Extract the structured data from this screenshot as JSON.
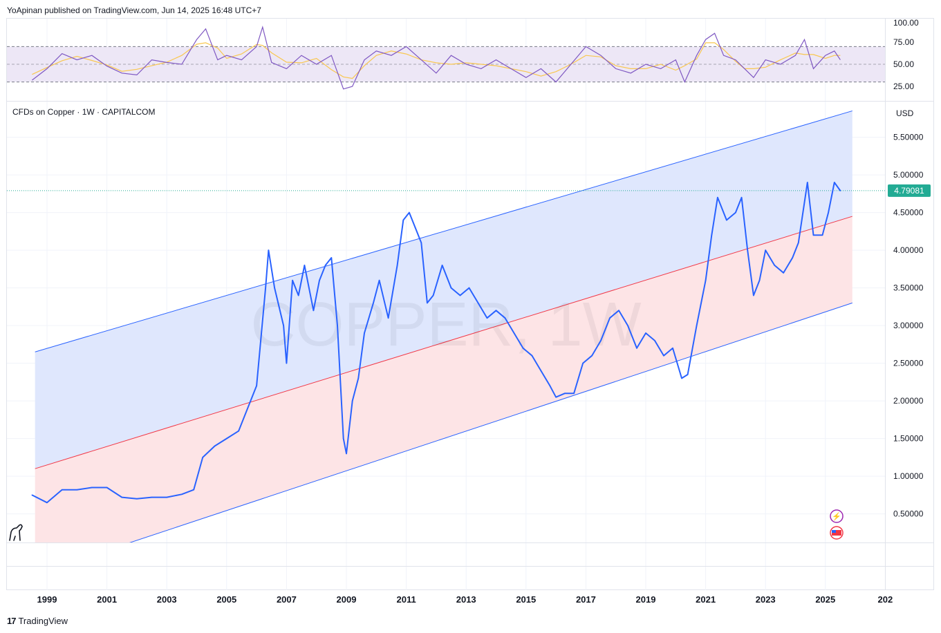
{
  "header": {
    "published": "YoApinan published on TradingView.com, Jun 14, 2025 16:48 UTC+7"
  },
  "symbol": {
    "label": "CFDs on Copper · 1W · CAPITALCOM",
    "watermark": "COPPER, 1W"
  },
  "price_axis": {
    "currency": "USD",
    "last_price": "4.79081",
    "last_price_value": 4.79081,
    "ticks": [
      "5.50000",
      "5.00000",
      "4.50000",
      "4.00000",
      "3.50000",
      "3.00000",
      "2.50000",
      "2.00000",
      "1.50000",
      "1.00000",
      "0.50000"
    ]
  },
  "rsi_axis": {
    "ticks": [
      "100.00",
      "75.00",
      "50.00",
      "25.00"
    ]
  },
  "time_axis": {
    "ticks": [
      "1999",
      "2001",
      "2003",
      "2005",
      "2007",
      "2009",
      "2011",
      "2013",
      "2015",
      "2017",
      "2019",
      "2021",
      "2023",
      "2025",
      "202"
    ]
  },
  "footer": {
    "brand": "TradingView"
  },
  "colors": {
    "price_line": "#2962ff",
    "channel_upper_fill": "#dfe7fd",
    "channel_lower_fill": "#fde4e6",
    "channel_line": "#2962ff",
    "mid_line": "#f23645",
    "last_price_badge": "#22ab94",
    "rsi_line": "#7e57c2",
    "rsi_ma": "#f9c74f",
    "rsi_band": "#ede7f6"
  },
  "chart_data": [
    {
      "type": "line",
      "title": "CFDs on Copper · 1W · CAPITALCOM",
      "ylabel": "USD",
      "ylim": [
        0.2,
        5.9
      ],
      "xlim": [
        1998.4,
        2026.0
      ],
      "series": [
        {
          "name": "",
          "x": [
            1998.5,
            1999.0,
            1999.5,
            2000.0,
            2000.5,
            2001.0,
            2001.5,
            2002.0,
            2002.5,
            2003.0,
            2003.5,
            2003.9,
            2004.2,
            2004.6,
            2005.0,
            2005.4,
            2005.8,
            2006.0,
            2006.3,
            2006.4,
            2006.6,
            2006.9,
            2007.0,
            2007.2,
            2007.4,
            2007.6,
            2007.9,
            2008.1,
            2008.3,
            2008.5,
            2008.7,
            2008.9,
            2009.0,
            2009.2,
            2009.4,
            2009.6,
            2009.9,
            2010.1,
            2010.4,
            2010.7,
            2010.9,
            2011.1,
            2011.3,
            2011.5,
            2011.7,
            2011.9,
            2012.2,
            2012.5,
            2012.8,
            2013.1,
            2013.4,
            2013.7,
            2014.0,
            2014.3,
            2014.6,
            2014.9,
            2015.2,
            2015.5,
            2015.8,
            2016.0,
            2016.3,
            2016.6,
            2016.9,
            2017.2,
            2017.5,
            2017.8,
            2018.1,
            2018.4,
            2018.7,
            2019.0,
            2019.3,
            2019.6,
            2019.9,
            2020.2,
            2020.4,
            2020.7,
            2021.0,
            2021.2,
            2021.4,
            2021.7,
            2022.0,
            2022.2,
            2022.4,
            2022.6,
            2022.8,
            2023.0,
            2023.3,
            2023.6,
            2023.9,
            2024.1,
            2024.4,
            2024.6,
            2024.9,
            2025.1,
            2025.3,
            2025.5
          ],
          "y": [
            0.75,
            0.65,
            0.82,
            0.82,
            0.85,
            0.85,
            0.72,
            0.7,
            0.72,
            0.72,
            0.76,
            0.82,
            1.25,
            1.4,
            1.5,
            1.6,
            2.0,
            2.2,
            3.5,
            4.0,
            3.5,
            3.0,
            2.5,
            3.6,
            3.4,
            3.8,
            3.2,
            3.6,
            3.8,
            3.9,
            3.0,
            1.5,
            1.3,
            2.0,
            2.3,
            2.9,
            3.3,
            3.6,
            3.1,
            3.8,
            4.4,
            4.5,
            4.3,
            4.1,
            3.3,
            3.4,
            3.8,
            3.5,
            3.4,
            3.5,
            3.3,
            3.1,
            3.2,
            3.1,
            2.9,
            2.7,
            2.6,
            2.4,
            2.2,
            2.05,
            2.1,
            2.1,
            2.5,
            2.6,
            2.8,
            3.1,
            3.2,
            3.0,
            2.7,
            2.9,
            2.8,
            2.6,
            2.7,
            2.3,
            2.35,
            3.0,
            3.6,
            4.2,
            4.7,
            4.4,
            4.5,
            4.7,
            4.0,
            3.4,
            3.6,
            4.0,
            3.8,
            3.7,
            3.9,
            4.1,
            4.9,
            4.2,
            4.2,
            4.5,
            4.9,
            4.79
          ]
        }
      ],
      "channel": {
        "upper": {
          "x": [
            1998.6,
            2025.9
          ],
          "y": [
            2.65,
            5.85
          ]
        },
        "mid": {
          "x": [
            1998.6,
            2025.9
          ],
          "y": [
            1.1,
            4.45
          ]
        },
        "lower": {
          "x": [
            1998.6,
            2025.9
          ],
          "y": [
            -0.3,
            3.3
          ]
        }
      }
    },
    {
      "type": "line",
      "title": "",
      "ylim": [
        18,
        100
      ],
      "bands": [
        30,
        70
      ],
      "series": [
        {
          "name": "",
          "x": [
            1998.5,
            1999.0,
            1999.5,
            2000.0,
            2000.5,
            2001.0,
            2001.5,
            2002.0,
            2002.5,
            2003.0,
            2003.5,
            2004.0,
            2004.3,
            2004.7,
            2005.0,
            2005.5,
            2006.0,
            2006.2,
            2006.5,
            2007.0,
            2007.5,
            2008.0,
            2008.5,
            2008.9,
            2009.2,
            2009.6,
            2010.0,
            2010.5,
            2011.0,
            2011.5,
            2012.0,
            2012.5,
            2013.0,
            2013.5,
            2014.0,
            2014.5,
            2015.0,
            2015.5,
            2016.0,
            2016.5,
            2017.0,
            2017.5,
            2018.0,
            2018.5,
            2019.0,
            2019.5,
            2020.0,
            2020.3,
            2020.7,
            2021.0,
            2021.3,
            2021.6,
            2022.0,
            2022.3,
            2022.6,
            2023.0,
            2023.5,
            2024.0,
            2024.3,
            2024.6,
            2025.0,
            2025.3,
            2025.5
          ],
          "y": [
            32,
            45,
            62,
            55,
            60,
            48,
            40,
            38,
            55,
            52,
            50,
            78,
            90,
            55,
            60,
            55,
            70,
            92,
            52,
            45,
            60,
            50,
            60,
            22,
            25,
            55,
            65,
            60,
            70,
            55,
            40,
            60,
            50,
            45,
            55,
            45,
            35,
            45,
            30,
            50,
            70,
            60,
            45,
            40,
            50,
            45,
            55,
            30,
            60,
            78,
            85,
            60,
            55,
            45,
            35,
            55,
            50,
            60,
            78,
            45,
            60,
            65,
            55
          ]
        }
      ]
    }
  ]
}
